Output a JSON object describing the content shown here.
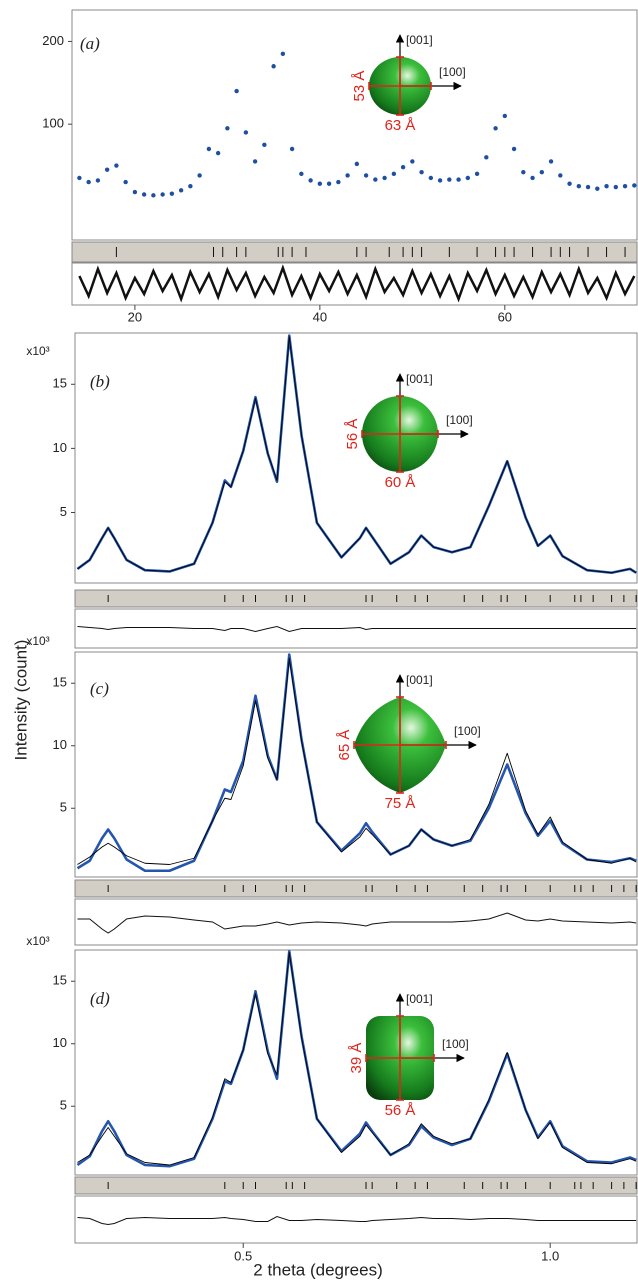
{
  "ylabel": "Intensity (count)",
  "chart_data": [
    {
      "type": "scatter",
      "panel_label": "(a)",
      "x": [
        14,
        15,
        16,
        17,
        18,
        19,
        20,
        21,
        22,
        23,
        24,
        25,
        26,
        27,
        28,
        29,
        30,
        31,
        32,
        33,
        34,
        35,
        36,
        37,
        38,
        39,
        40,
        41,
        42,
        43,
        44,
        45,
        46,
        47,
        48,
        49,
        50,
        51,
        52,
        53,
        54,
        55,
        56,
        57,
        58,
        59,
        60,
        61,
        62,
        63,
        64,
        65,
        66,
        67,
        68,
        69,
        70,
        71,
        72,
        73,
        74
      ],
      "series": [
        {
          "color": "#1f4fa0",
          "values": [
            35,
            30,
            32,
            45,
            50,
            30,
            18,
            15,
            14,
            15,
            16,
            20,
            25,
            38,
            70,
            65,
            95,
            140,
            90,
            55,
            75,
            170,
            185,
            70,
            40,
            32,
            28,
            28,
            30,
            38,
            52,
            38,
            33,
            35,
            40,
            48,
            55,
            42,
            35,
            32,
            33,
            33,
            35,
            40,
            60,
            95,
            110,
            70,
            42,
            35,
            42,
            55,
            38,
            28,
            25,
            24,
            22,
            25,
            24,
            25,
            26
          ]
        }
      ],
      "difference": [
        8,
        -12,
        15,
        -9,
        11,
        -14,
        6,
        -10,
        13,
        -7,
        9,
        -15,
        12,
        -8,
        10,
        -13,
        14,
        -6,
        11,
        -12,
        7,
        -9,
        16,
        -11,
        8,
        -14,
        10,
        -7,
        12,
        -10,
        9,
        -13,
        15,
        -8,
        6,
        -11,
        13,
        -9,
        10,
        -12,
        8,
        -15,
        11,
        -7,
        14,
        -10,
        9,
        -12,
        7,
        -13,
        12,
        -8,
        10,
        -11,
        15,
        -9,
        6,
        -14,
        11,
        -10,
        8
      ],
      "bragg_positions": [
        18,
        28.5,
        29.5,
        31,
        32,
        35.5,
        36,
        37,
        38.5,
        44,
        45,
        47.5,
        49,
        50,
        51,
        54,
        57,
        59,
        60,
        61,
        63,
        65,
        66,
        67,
        69,
        71,
        73
      ],
      "xlim": [
        13.2,
        74.4
      ],
      "ylim": [
        -40,
        238
      ],
      "xticks": [
        20,
        40,
        60
      ],
      "yticks": [
        100,
        200
      ],
      "inset": {
        "up": "[001]",
        "right": "[100]",
        "height": "53 Å",
        "width": "63 Å"
      }
    },
    {
      "type": "line",
      "panel_label": "(b)",
      "multiplier": "x10³",
      "x": [
        0.23,
        0.25,
        0.27,
        0.28,
        0.29,
        0.31,
        0.34,
        0.38,
        0.42,
        0.45,
        0.47,
        0.48,
        0.5,
        0.52,
        0.54,
        0.555,
        0.575,
        0.595,
        0.62,
        0.66,
        0.69,
        0.7,
        0.71,
        0.74,
        0.77,
        0.79,
        0.81,
        0.84,
        0.87,
        0.9,
        0.93,
        0.96,
        0.98,
        1,
        1.02,
        1.06,
        1.1,
        1.13,
        1.14
      ],
      "series": [
        {
          "color": "#2456b0",
          "values": [
            0.6,
            1.3,
            3.0,
            3.8,
            3.0,
            1.3,
            0.5,
            0.4,
            1.0,
            4.2,
            7.5,
            7.0,
            9.8,
            14,
            9.6,
            7.4,
            18.8,
            11,
            4.2,
            1.5,
            3.0,
            3.8,
            3.1,
            1.0,
            1.9,
            3.2,
            2.3,
            1.9,
            2.3,
            5.5,
            9.0,
            4.6,
            2.4,
            3.2,
            1.6,
            0.5,
            0.3,
            0.6,
            0.3
          ]
        },
        {
          "color": "#000000",
          "values": [
            0.6,
            1.3,
            3.0,
            3.8,
            3.0,
            1.3,
            0.5,
            0.4,
            1.0,
            4.2,
            7.4,
            7.0,
            9.8,
            13.9,
            9.6,
            7.5,
            18.7,
            11,
            4.2,
            1.5,
            3.0,
            3.8,
            3.1,
            1.0,
            1.9,
            3.2,
            2.3,
            1.9,
            2.3,
            5.5,
            9.0,
            4.6,
            2.4,
            3.2,
            1.6,
            0.5,
            0.3,
            0.6,
            0.3
          ]
        }
      ],
      "difference": [
        0.2,
        0.1,
        0,
        -0.1,
        0,
        0.1,
        0.1,
        0.1,
        0,
        0,
        -0.2,
        0,
        0,
        -0.3,
        0,
        0.2,
        -0.3,
        0,
        0,
        0,
        0.1,
        -0.1,
        0,
        0,
        0,
        0,
        0,
        0,
        0,
        0,
        0,
        0,
        0,
        0,
        0,
        0,
        0,
        0,
        0
      ],
      "bragg_positions": [
        0.28,
        0.47,
        0.5,
        0.52,
        0.57,
        0.58,
        0.6,
        0.7,
        0.71,
        0.75,
        0.78,
        0.8,
        0.86,
        0.89,
        0.92,
        0.93,
        0.96,
        1.0,
        1.04,
        1.05,
        1.07,
        1.1,
        1.12,
        1.14
      ],
      "xlim": [
        0.226,
        1.143
      ],
      "ylim": [
        -0.5,
        19
      ],
      "yticks": [
        5,
        10,
        15
      ],
      "inset": {
        "up": "[001]",
        "right": "[100]",
        "height": "56 Å",
        "width": "60 Å"
      }
    },
    {
      "type": "line",
      "panel_label": "(c)",
      "multiplier": "x10³",
      "x": [
        0.23,
        0.25,
        0.27,
        0.28,
        0.29,
        0.31,
        0.34,
        0.38,
        0.42,
        0.45,
        0.47,
        0.48,
        0.5,
        0.52,
        0.54,
        0.555,
        0.575,
        0.595,
        0.62,
        0.66,
        0.69,
        0.7,
        0.71,
        0.74,
        0.77,
        0.79,
        0.81,
        0.84,
        0.87,
        0.9,
        0.93,
        0.96,
        0.98,
        1,
        1.02,
        1.06,
        1.1,
        1.13,
        1.14
      ],
      "series": [
        {
          "color": "#2456b0",
          "values": [
            0.2,
            0.8,
            2.6,
            3.3,
            2.6,
            0.9,
            0.0,
            0.0,
            0.8,
            4.0,
            6.5,
            6.3,
            8.8,
            14,
            9.2,
            7.3,
            17.3,
            10.5,
            3.9,
            1.6,
            3.0,
            3.8,
            3.1,
            1.3,
            2.0,
            3.3,
            2.5,
            2.0,
            2.4,
            5.0,
            8.5,
            4.6,
            2.8,
            4.0,
            2.2,
            0.9,
            0.7,
            1.0,
            0.8
          ]
        },
        {
          "color": "#000000",
          "values": [
            0.5,
            1.1,
            1.9,
            2.2,
            1.9,
            1.2,
            0.6,
            0.5,
            1.0,
            4.0,
            5.8,
            5.7,
            8.4,
            13.6,
            9.0,
            7.3,
            17.0,
            10.4,
            3.9,
            1.5,
            2.7,
            3.4,
            2.9,
            1.3,
            2.0,
            3.3,
            2.5,
            2.0,
            2.5,
            5.3,
            9.4,
            4.8,
            2.9,
            4.3,
            2.3,
            0.9,
            0.6,
            1.0,
            0.7
          ]
        }
      ],
      "difference": [
        0.3,
        0.3,
        -0.7,
        -1.1,
        -0.7,
        0.3,
        0.6,
        0.5,
        0.2,
        0,
        -0.7,
        -0.6,
        -0.4,
        -0.4,
        -0.2,
        0,
        -0.3,
        -0.1,
        0,
        -0.1,
        -0.3,
        -0.4,
        -0.2,
        0,
        0,
        0,
        0,
        0,
        0.1,
        0.3,
        0.9,
        0.2,
        0.1,
        0.3,
        0.1,
        0,
        -0.1,
        0,
        -0.1
      ],
      "bragg_positions": [
        0.28,
        0.47,
        0.5,
        0.52,
        0.57,
        0.58,
        0.6,
        0.7,
        0.71,
        0.75,
        0.78,
        0.8,
        0.86,
        0.89,
        0.92,
        0.93,
        0.96,
        1.0,
        1.04,
        1.05,
        1.07,
        1.1,
        1.12,
        1.14
      ],
      "xlim": [
        0.226,
        1.143
      ],
      "ylim": [
        -0.5,
        17.5
      ],
      "yticks": [
        5,
        10,
        15
      ],
      "inset": {
        "up": "[001]",
        "right": "[100]",
        "height": "65 Å",
        "width": "75 Å"
      }
    },
    {
      "type": "line",
      "panel_label": "(d)",
      "multiplier": "x10³",
      "xlabel": "2 theta (degrees)",
      "x": [
        0.23,
        0.25,
        0.27,
        0.28,
        0.29,
        0.31,
        0.34,
        0.38,
        0.42,
        0.45,
        0.47,
        0.48,
        0.5,
        0.52,
        0.54,
        0.555,
        0.575,
        0.595,
        0.62,
        0.66,
        0.69,
        0.7,
        0.71,
        0.74,
        0.77,
        0.79,
        0.81,
        0.84,
        0.87,
        0.9,
        0.93,
        0.96,
        0.98,
        1,
        1.02,
        1.06,
        1.1,
        1.13,
        1.14
      ],
      "series": [
        {
          "color": "#2456b0",
          "values": [
            0.3,
            1.0,
            3.0,
            3.8,
            3.0,
            1.1,
            0.3,
            0.2,
            0.8,
            4.0,
            7.0,
            6.8,
            9.5,
            14.2,
            9.4,
            7.2,
            17.4,
            10.6,
            4.0,
            1.4,
            2.8,
            3.7,
            3.0,
            1.1,
            1.9,
            3.4,
            2.5,
            1.9,
            2.4,
            5.4,
            9.2,
            4.7,
            2.5,
            3.8,
            1.8,
            0.6,
            0.5,
            0.9,
            0.7
          ]
        },
        {
          "color": "#000000",
          "values": [
            0.5,
            1.1,
            2.6,
            3.3,
            2.6,
            1.2,
            0.5,
            0.3,
            0.9,
            4.1,
            7.2,
            6.9,
            9.5,
            14.0,
            9.2,
            7.5,
            17.3,
            10.5,
            4.0,
            1.3,
            2.6,
            3.5,
            2.9,
            1.1,
            2.0,
            3.6,
            2.6,
            2.0,
            2.4,
            5.5,
            9.3,
            4.7,
            2.4,
            3.7,
            1.7,
            0.5,
            0.4,
            0.8,
            0.6
          ]
        }
      ],
      "difference": [
        0.2,
        0.1,
        -0.4,
        -0.5,
        -0.4,
        0.1,
        0.2,
        0.1,
        0.1,
        0.1,
        0.2,
        0.1,
        0,
        -0.2,
        -0.2,
        0.3,
        -0.1,
        -0.1,
        0,
        -0.1,
        -0.2,
        -0.2,
        -0.1,
        0,
        0.1,
        0.2,
        0.1,
        0.1,
        0,
        0.1,
        0.1,
        0,
        -0.1,
        -0.1,
        -0.1,
        -0.1,
        -0.1,
        -0.1,
        -0.1
      ],
      "bragg_positions": [
        0.28,
        0.47,
        0.5,
        0.52,
        0.57,
        0.58,
        0.6,
        0.7,
        0.71,
        0.75,
        0.78,
        0.8,
        0.86,
        0.89,
        0.92,
        0.93,
        0.96,
        1.0,
        1.04,
        1.05,
        1.07,
        1.1,
        1.12,
        1.14
      ],
      "xlim": [
        0.226,
        1.143
      ],
      "ylim": [
        -0.5,
        17.5
      ],
      "xticks": [
        0.5,
        {
          "value": 1,
          "label": "1.0"
        }
      ],
      "yticks": [
        5,
        10,
        15
      ],
      "inset": {
        "up": "[001]",
        "right": "[100]",
        "height": "39 Å",
        "width": "56 Å"
      }
    }
  ]
}
